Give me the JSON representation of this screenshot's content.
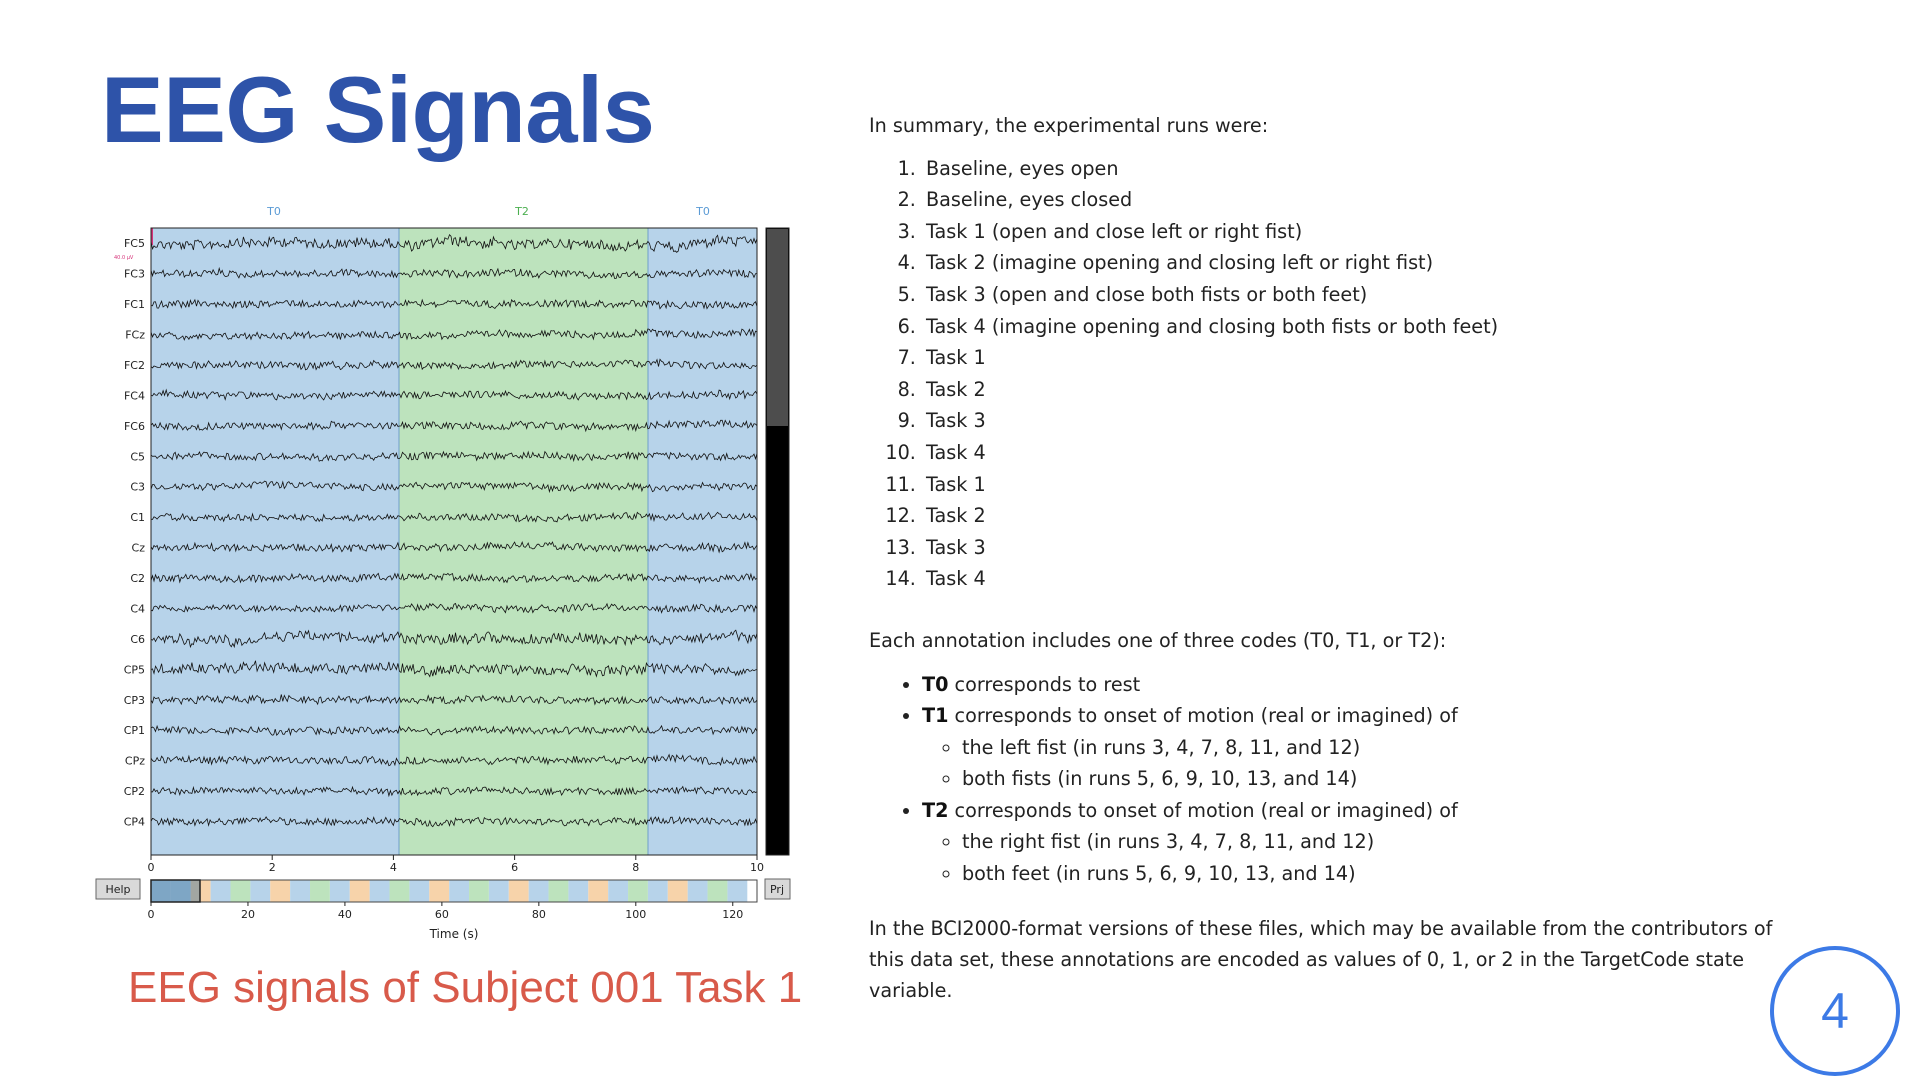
{
  "slide": {
    "title": "EEG Signals",
    "caption": "EEG signals of Subject 001 Task 1",
    "page_number": "4"
  },
  "figure": {
    "annotation_labels": [
      "T0",
      "T2",
      "T0"
    ],
    "scale_label": "40.0 µV",
    "help_button": "Help",
    "proj_button": "Prj",
    "xlabel": "Time (s)"
  },
  "chart_data": {
    "type": "line",
    "title": "",
    "channels": [
      "FC5",
      "FC3",
      "FC1",
      "FCz",
      "FC2",
      "FC4",
      "FC6",
      "C5",
      "C3",
      "C1",
      "Cz",
      "C2",
      "C4",
      "C6",
      "CP5",
      "CP3",
      "CP1",
      "CPz",
      "CP2",
      "CP4"
    ],
    "xlim": [
      0,
      10
    ],
    "xticks": [
      0,
      2,
      4,
      6,
      8,
      10
    ],
    "xlabel": "",
    "annotations": [
      {
        "label": "T0",
        "start": 0,
        "end": 4.1,
        "color": "#b7d3ea"
      },
      {
        "label": "T2",
        "start": 4.1,
        "end": 8.2,
        "color": "#bde3bd"
      },
      {
        "label": "T0",
        "start": 8.2,
        "end": 10,
        "color": "#b7d3ea"
      }
    ],
    "overview": {
      "xlim": [
        0,
        125
      ],
      "xticks": [
        0,
        20,
        40,
        60,
        80,
        100,
        120
      ],
      "xlabel": "Time (s)",
      "segment_duration": 4.1,
      "segment_labels": [
        "T0",
        "T0",
        "T1",
        "T0",
        "T2",
        "T0",
        "T1",
        "T0",
        "T2",
        "T0",
        "T1",
        "T0",
        "T2",
        "T0",
        "T1",
        "T0",
        "T2",
        "T0",
        "T1",
        "T0",
        "T2",
        "T0",
        "T1",
        "T0",
        "T2",
        "T0",
        "T1",
        "T0",
        "T2",
        "T0"
      ]
    }
  },
  "notes": {
    "intro": "In summary, the experimental runs were:",
    "runs": [
      "Baseline, eyes open",
      "Baseline, eyes closed",
      "Task 1 (open and close left or right fist)",
      "Task 2 (imagine opening and closing left or right fist)",
      "Task 3 (open and close both fists or both feet)",
      "Task 4 (imagine opening and closing both fists or both feet)",
      "Task 1",
      "Task 2",
      "Task 3",
      "Task 4",
      "Task 1",
      "Task 2",
      "Task 3",
      "Task 4"
    ],
    "codes_intro": "Each annotation includes one of three codes (T0, T1, or T2):",
    "codes": [
      {
        "code": "T0",
        "text": " corresponds to rest",
        "sub": []
      },
      {
        "code": "T1",
        "text": " corresponds to onset of motion (real or imagined) of",
        "sub": [
          "the left fist (in runs 3, 4, 7, 8, 11, and 12)",
          "both fists (in runs 5, 6, 9, 10, 13, and 14)"
        ]
      },
      {
        "code": "T2",
        "text": " corresponds to onset of motion (real or imagined) of",
        "sub": [
          "the right fist (in runs 3, 4, 7, 8, 11, and 12)",
          "both feet (in runs 5, 6, 9, 10, 13, and 14)"
        ]
      }
    ],
    "outro": "In the BCI2000-format versions of these files, which may be available from the contributors of this data set, these annotations are encoded as values of 0, 1, or 2 in the TargetCode state variable."
  },
  "colors": {
    "title": "#2e53a9",
    "caption": "#d85a4a",
    "page_circle": "#3c7ae6",
    "T0": "#b7d3ea",
    "T1": "#f7d3aa",
    "T2": "#bde3bd",
    "T0_label": "#5b9bd5",
    "T2_label": "#4caf50"
  }
}
